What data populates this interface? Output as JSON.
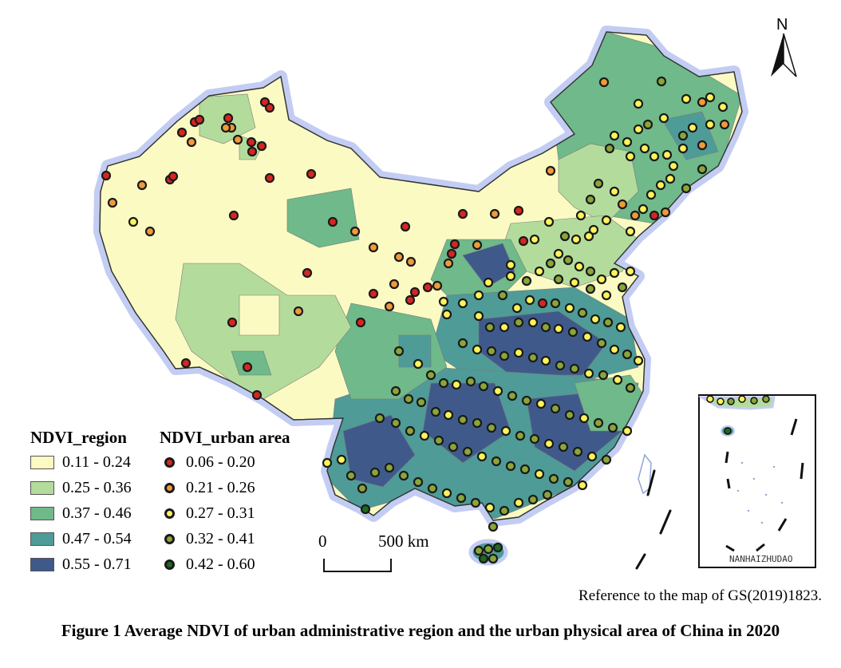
{
  "map": {
    "north_label": "N",
    "inset_label": "NANHAIZHUDAO",
    "scale_bar": {
      "zero_label": "0",
      "distance_label": "500 km"
    },
    "reference_text": "Reference to the map of GS(2019)1823.",
    "caption": "Figure 1 Average NDVI of  urban administrative region and the urban physical area of China in 2020"
  },
  "legend_region": {
    "title": "NDVI_region",
    "items": [
      {
        "label": "0.11 - 0.24",
        "color": "#fafac2"
      },
      {
        "label": "0.25 - 0.36",
        "color": "#b3dc9c"
      },
      {
        "label": "0.37 - 0.46",
        "color": "#6fb98a"
      },
      {
        "label": "0.47 - 0.54",
        "color": "#4e9b98"
      },
      {
        "label": "0.55 - 0.71",
        "color": "#3f5a8a"
      }
    ]
  },
  "legend_urban": {
    "title": "NDVI_urban area",
    "items": [
      {
        "label": "0.06 - 0.20",
        "color": "#d7261f"
      },
      {
        "label": "0.21 - 0.26",
        "color": "#f09a3a"
      },
      {
        "label": "0.27 - 0.31",
        "color": "#fdf45a"
      },
      {
        "label": "0.32 - 0.41",
        "color": "#8aa63a"
      },
      {
        "label": "0.42 - 0.60",
        "color": "#1e6a1e"
      }
    ]
  }
}
